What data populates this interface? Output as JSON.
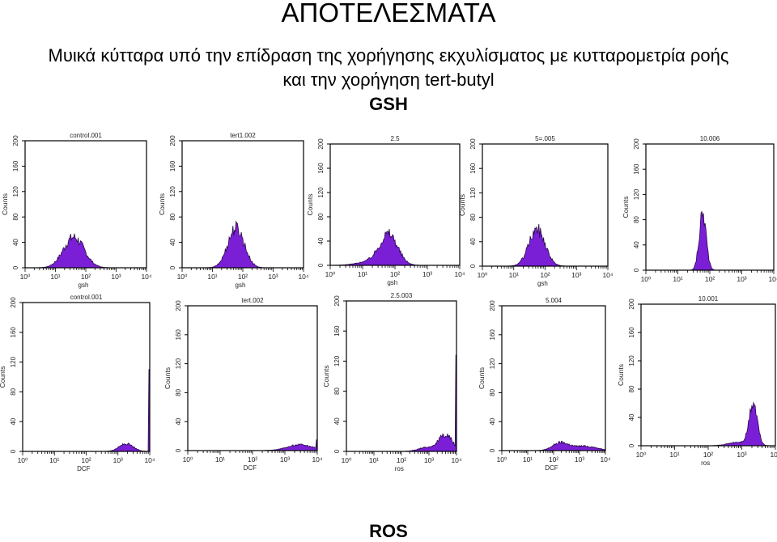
{
  "header": {
    "title": "ΑΠΟΤΕΛΕΣΜΑΤΑ",
    "subtitle_line1": "Μυικά κύτταρα υπό την επίδραση της χορήγησης εκχυλίσματος με κυτταρομετρία ροής",
    "subtitle_line2": "και την χορήγηση tert-butyl"
  },
  "sections": {
    "top": "GSH",
    "bottom": "ROS"
  },
  "colors": {
    "fill": "#7a1fd6",
    "outline": "#2a0a4a",
    "frame": "#000000"
  },
  "chart_data": [
    {
      "type": "area",
      "title": "control.001",
      "xlabel": "gsh",
      "ylabel": "Counts",
      "xscale": "log",
      "xlim": [
        1,
        10000
      ],
      "ylim": [
        0,
        200
      ],
      "xticks": [
        "10⁰",
        "10¹",
        "10²",
        "10³",
        "10⁴"
      ],
      "yticks": [
        "0",
        "40",
        "80",
        "120",
        "160",
        "200"
      ],
      "peaks": [
        {
          "x": 40,
          "height": 48,
          "width": 0.34
        }
      ]
    },
    {
      "type": "area",
      "title": "tert1.002",
      "xlabel": "gsh",
      "ylabel": "Counts",
      "xscale": "log",
      "xlim": [
        1,
        10000
      ],
      "ylim": [
        0,
        200
      ],
      "xticks": [
        "10⁰",
        "10¹",
        "10²",
        "10³",
        "10⁴"
      ],
      "yticks": [
        "0",
        "40",
        "80",
        "120",
        "160",
        "200"
      ],
      "peaks": [
        {
          "x": 60,
          "height": 63,
          "width": 0.27
        }
      ]
    },
    {
      "type": "area",
      "title": "2.5",
      "xlabel": "gsh",
      "ylabel": "Counts",
      "xscale": "log",
      "xlim": [
        1,
        10000
      ],
      "ylim": [
        0,
        200
      ],
      "xticks": [
        "10⁰",
        "10¹",
        "10²",
        "10³",
        "10⁴"
      ],
      "yticks": [
        "0",
        "40",
        "80",
        "120",
        "160",
        "200"
      ],
      "peaks": [
        {
          "x": 65,
          "height": 47,
          "width": 0.27
        },
        {
          "x": 25,
          "height": 8,
          "width": 0.45
        }
      ]
    },
    {
      "type": "area",
      "title": "5=.005",
      "xlabel": "gsh",
      "ylabel": "Counts",
      "xscale": "log",
      "xlim": [
        1,
        10000
      ],
      "ylim": [
        0,
        200
      ],
      "xticks": [
        "10⁰",
        "10¹",
        "10²",
        "10³",
        "10⁴"
      ],
      "yticks": [
        "0",
        "40",
        "80",
        "120",
        "160",
        "200"
      ],
      "peaks": [
        {
          "x": 55,
          "height": 60,
          "width": 0.26
        }
      ]
    },
    {
      "type": "area",
      "title": "10.006",
      "xlabel": "",
      "ylabel": "Counts",
      "xscale": "log",
      "xlim": [
        1,
        10000
      ],
      "ylim": [
        0,
        200
      ],
      "xticks": [
        "10⁰",
        "10¹",
        "10²",
        "10³",
        "10⁴"
      ],
      "yticks": [
        "0",
        "40",
        "80",
        "120",
        "160",
        "200"
      ],
      "peaks": [
        {
          "x": 60,
          "height": 90,
          "width": 0.11
        }
      ]
    },
    {
      "type": "area",
      "title": "control.001",
      "xlabel": "DCF",
      "ylabel": "Counts",
      "xscale": "log",
      "xlim": [
        1,
        10000
      ],
      "ylim": [
        0,
        200
      ],
      "xticks": [
        "10⁰",
        "10¹",
        "10²",
        "10³",
        "10⁴"
      ],
      "yticks": [
        "0",
        "40",
        "80",
        "120",
        "160",
        "200"
      ],
      "peaks": [
        {
          "x": 1800,
          "height": 10,
          "width": 0.22
        }
      ],
      "edge_spike": 110
    },
    {
      "type": "area",
      "title": "tert.002",
      "xlabel": "DCF",
      "ylabel": "Counts",
      "xscale": "log",
      "xlim": [
        1,
        10000
      ],
      "ylim": [
        0,
        200
      ],
      "xticks": [
        "10⁰",
        "10¹",
        "10²",
        "10³",
        "10⁴"
      ],
      "yticks": [
        "0",
        "40",
        "80",
        "120",
        "160",
        "200"
      ],
      "peaks": [
        {
          "x": 3000,
          "height": 8,
          "width": 0.4
        }
      ],
      "edge_spike": 15
    },
    {
      "type": "area",
      "title": "2.5.003",
      "xlabel": "ros",
      "ylabel": "Counts",
      "xscale": "log",
      "xlim": [
        1,
        10000
      ],
      "ylim": [
        0,
        200
      ],
      "xticks": [
        "10⁰",
        "10¹",
        "10²",
        "10³",
        "10⁴"
      ],
      "yticks": [
        "0",
        "40",
        "80",
        "120",
        "160",
        "200"
      ],
      "peaks": [
        {
          "x": 4000,
          "height": 22,
          "width": 0.25
        },
        {
          "x": 800,
          "height": 5,
          "width": 0.3
        }
      ],
      "edge_spike": 128
    },
    {
      "type": "area",
      "title": "5.004",
      "xlabel": "DCF",
      "ylabel": "Counts",
      "xscale": "log",
      "xlim": [
        1,
        10000
      ],
      "ylim": [
        0,
        200
      ],
      "xticks": [
        "10⁰",
        "10¹",
        "10²",
        "10³",
        "10⁴"
      ],
      "yticks": [
        "0",
        "40",
        "80",
        "120",
        "160",
        "200"
      ],
      "peaks": [
        {
          "x": 180,
          "height": 10,
          "width": 0.3
        },
        {
          "x": 1500,
          "height": 6,
          "width": 0.5
        }
      ]
    },
    {
      "type": "area",
      "title": "10.001",
      "xlabel": "ros",
      "ylabel": "Counts",
      "xscale": "log",
      "xlim": [
        1,
        10000
      ],
      "ylim": [
        0,
        200
      ],
      "xticks": [
        "10⁰",
        "10¹",
        "10²",
        "10³",
        "10⁴"
      ],
      "yticks": [
        "0",
        "40",
        "80",
        "120",
        "160",
        "200"
      ],
      "peaks": [
        {
          "x": 2200,
          "height": 60,
          "width": 0.12
        },
        {
          "x": 800,
          "height": 5,
          "width": 0.3
        }
      ]
    }
  ]
}
